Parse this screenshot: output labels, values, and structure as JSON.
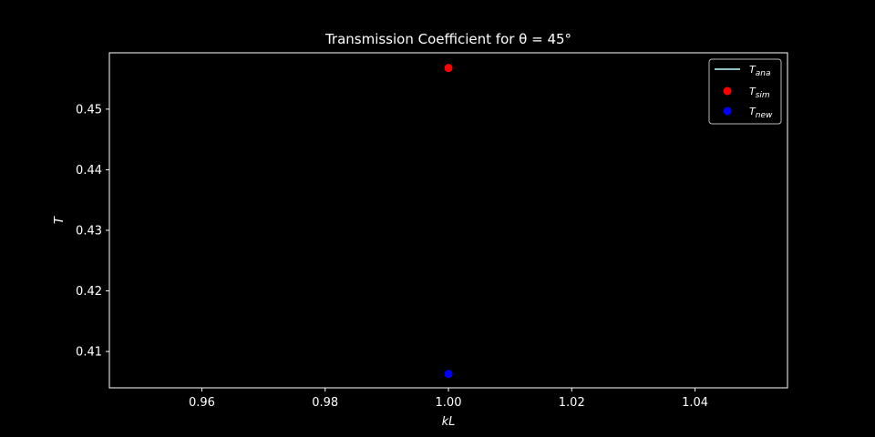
{
  "chart_data": {
    "type": "scatter",
    "title": "Transmission Coefficient for θ = 45°",
    "xlabel": "kL",
    "ylabel": "T",
    "xlim": [
      0.945,
      1.055
    ],
    "ylim": [
      0.404,
      0.4593
    ],
    "x_ticks": [
      0.96,
      0.98,
      1.0,
      1.02,
      1.04
    ],
    "y_ticks": [
      0.41,
      0.42,
      0.43,
      0.44,
      0.45
    ],
    "grid": false,
    "legend_position": "top-right",
    "background": "#000000",
    "series": [
      {
        "name": "T_ana",
        "style": "line",
        "color": "#a6dce0",
        "x": [],
        "y": []
      },
      {
        "name": "T_sim",
        "style": "marker",
        "color": "#ff0000",
        "x": [
          1.0
        ],
        "y": [
          0.4568
        ]
      },
      {
        "name": "T_new",
        "style": "marker",
        "color": "#0000ff",
        "x": [
          1.0
        ],
        "y": [
          0.4063
        ]
      }
    ]
  }
}
